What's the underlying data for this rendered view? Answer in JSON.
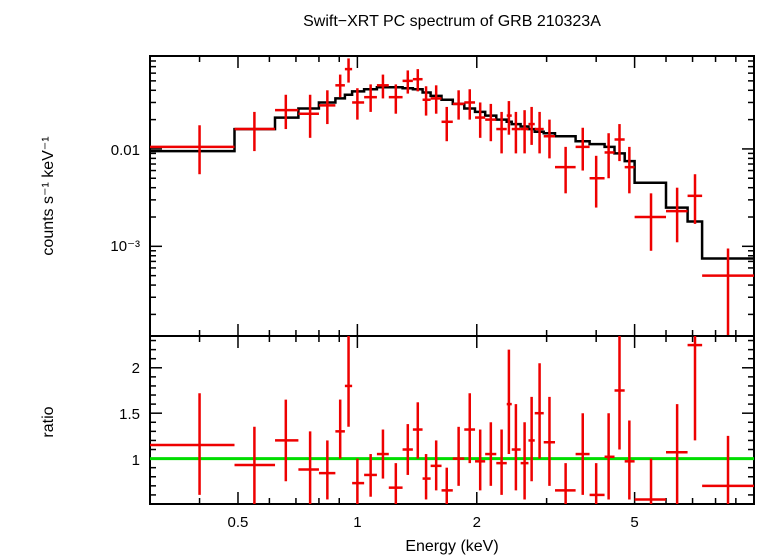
{
  "chart_data": {
    "type": "scatter",
    "title": "Swift−XRT PC spectrum of GRB 210323A",
    "xlabel": "Energy (keV)",
    "x_scale": "log",
    "xlim": [
      0.3,
      10
    ],
    "x_ticks": [
      {
        "value": 0.5,
        "label": "0.5"
      },
      {
        "value": 1,
        "label": "1"
      },
      {
        "value": 2,
        "label": "2"
      },
      {
        "value": 5,
        "label": "5"
      }
    ],
    "colors": {
      "data": "#ee0000",
      "model": "#000000",
      "unity": "#00dd00"
    },
    "panels": [
      {
        "id": "spectrum",
        "ylabel": "counts s⁻¹ keV⁻¹",
        "y_scale": "log",
        "ylim": [
          0.00012,
          0.09
        ],
        "y_ticks": [
          {
            "value": 0.01,
            "label": "0.01"
          },
          {
            "value": 0.001,
            "label": "10⁻³"
          }
        ],
        "data": [
          {
            "x": 0.4,
            "xlo": 0.3,
            "xhi": 0.49,
            "y": 0.0105,
            "ylo": 0.0055,
            "yhi": 0.0175
          },
          {
            "x": 0.55,
            "xlo": 0.49,
            "xhi": 0.62,
            "y": 0.016,
            "ylo": 0.0095,
            "yhi": 0.024
          },
          {
            "x": 0.66,
            "xlo": 0.62,
            "xhi": 0.71,
            "y": 0.025,
            "ylo": 0.016,
            "yhi": 0.036
          },
          {
            "x": 0.76,
            "xlo": 0.71,
            "xhi": 0.8,
            "y": 0.023,
            "ylo": 0.013,
            "yhi": 0.036
          },
          {
            "x": 0.84,
            "xlo": 0.8,
            "xhi": 0.88,
            "y": 0.028,
            "ylo": 0.018,
            "yhi": 0.04
          },
          {
            "x": 0.905,
            "xlo": 0.88,
            "xhi": 0.93,
            "y": 0.045,
            "ylo": 0.034,
            "yhi": 0.058
          },
          {
            "x": 0.95,
            "xlo": 0.93,
            "xhi": 0.97,
            "y": 0.066,
            "ylo": 0.048,
            "yhi": 0.085
          },
          {
            "x": 1.0,
            "xlo": 0.97,
            "xhi": 1.04,
            "y": 0.03,
            "ylo": 0.02,
            "yhi": 0.042
          },
          {
            "x": 1.08,
            "xlo": 1.04,
            "xhi": 1.12,
            "y": 0.034,
            "ylo": 0.024,
            "yhi": 0.046
          },
          {
            "x": 1.16,
            "xlo": 1.12,
            "xhi": 1.2,
            "y": 0.045,
            "ylo": 0.033,
            "yhi": 0.058
          },
          {
            "x": 1.25,
            "xlo": 1.2,
            "xhi": 1.3,
            "y": 0.034,
            "ylo": 0.023,
            "yhi": 0.046
          },
          {
            "x": 1.34,
            "xlo": 1.3,
            "xhi": 1.38,
            "y": 0.05,
            "ylo": 0.037,
            "yhi": 0.064
          },
          {
            "x": 1.42,
            "xlo": 1.38,
            "xhi": 1.46,
            "y": 0.052,
            "ylo": 0.039,
            "yhi": 0.066
          },
          {
            "x": 1.49,
            "xlo": 1.46,
            "xhi": 1.53,
            "y": 0.032,
            "ylo": 0.022,
            "yhi": 0.044
          },
          {
            "x": 1.58,
            "xlo": 1.53,
            "xhi": 1.63,
            "y": 0.033,
            "ylo": 0.023,
            "yhi": 0.045
          },
          {
            "x": 1.68,
            "xlo": 1.63,
            "xhi": 1.74,
            "y": 0.019,
            "ylo": 0.012,
            "yhi": 0.027
          },
          {
            "x": 1.8,
            "xlo": 1.74,
            "xhi": 1.86,
            "y": 0.029,
            "ylo": 0.02,
            "yhi": 0.04
          },
          {
            "x": 1.92,
            "xlo": 1.86,
            "xhi": 1.98,
            "y": 0.03,
            "ylo": 0.02,
            "yhi": 0.041
          },
          {
            "x": 2.04,
            "xlo": 1.98,
            "xhi": 2.1,
            "y": 0.021,
            "ylo": 0.013,
            "yhi": 0.03
          },
          {
            "x": 2.17,
            "xlo": 2.1,
            "xhi": 2.24,
            "y": 0.02,
            "ylo": 0.012,
            "yhi": 0.029
          },
          {
            "x": 2.31,
            "xlo": 2.24,
            "xhi": 2.38,
            "y": 0.016,
            "ylo": 0.009,
            "yhi": 0.024
          },
          {
            "x": 2.41,
            "xlo": 2.38,
            "xhi": 2.45,
            "y": 0.022,
            "ylo": 0.014,
            "yhi": 0.031
          },
          {
            "x": 2.51,
            "xlo": 2.45,
            "xhi": 2.58,
            "y": 0.016,
            "ylo": 0.009,
            "yhi": 0.024
          },
          {
            "x": 2.64,
            "xlo": 2.58,
            "xhi": 2.7,
            "y": 0.016,
            "ylo": 0.009,
            "yhi": 0.025
          },
          {
            "x": 2.75,
            "xlo": 2.7,
            "xhi": 2.8,
            "y": 0.018,
            "ylo": 0.011,
            "yhi": 0.027
          },
          {
            "x": 2.88,
            "xlo": 2.8,
            "xhi": 2.95,
            "y": 0.016,
            "ylo": 0.009,
            "yhi": 0.024
          },
          {
            "x": 3.05,
            "xlo": 2.95,
            "xhi": 3.15,
            "y": 0.0135,
            "ylo": 0.008,
            "yhi": 0.02
          },
          {
            "x": 3.35,
            "xlo": 3.15,
            "xhi": 3.55,
            "y": 0.0065,
            "ylo": 0.0035,
            "yhi": 0.0105
          },
          {
            "x": 3.7,
            "xlo": 3.55,
            "xhi": 3.85,
            "y": 0.0105,
            "ylo": 0.006,
            "yhi": 0.0165
          },
          {
            "x": 4.0,
            "xlo": 3.85,
            "xhi": 4.2,
            "y": 0.005,
            "ylo": 0.0025,
            "yhi": 0.0085
          },
          {
            "x": 4.3,
            "xlo": 4.2,
            "xhi": 4.45,
            "y": 0.0092,
            "ylo": 0.005,
            "yhi": 0.0145
          },
          {
            "x": 4.58,
            "xlo": 4.45,
            "xhi": 4.72,
            "y": 0.0125,
            "ylo": 0.0075,
            "yhi": 0.018
          },
          {
            "x": 4.85,
            "xlo": 4.72,
            "xhi": 5.0,
            "y": 0.0065,
            "ylo": 0.0035,
            "yhi": 0.0105
          },
          {
            "x": 5.5,
            "xlo": 5.0,
            "xhi": 6.0,
            "y": 0.002,
            "ylo": 0.0009,
            "yhi": 0.0035
          },
          {
            "x": 6.4,
            "xlo": 6.0,
            "xhi": 6.8,
            "y": 0.0023,
            "ylo": 0.0011,
            "yhi": 0.004
          },
          {
            "x": 7.1,
            "xlo": 6.8,
            "xhi": 7.4,
            "y": 0.0033,
            "ylo": 0.0017,
            "yhi": 0.0055
          },
          {
            "x": 8.6,
            "xlo": 7.4,
            "xhi": 10.0,
            "y": 0.0005,
            "ylo": 0.00012,
            "yhi": 0.00095
          }
        ],
        "model_steps": [
          {
            "x0": 0.3,
            "x1": 0.49,
            "y": 0.0095
          },
          {
            "x0": 0.49,
            "x1": 0.62,
            "y": 0.016
          },
          {
            "x0": 0.62,
            "x1": 0.71,
            "y": 0.021
          },
          {
            "x0": 0.71,
            "x1": 0.8,
            "y": 0.026
          },
          {
            "x0": 0.8,
            "x1": 0.88,
            "y": 0.03
          },
          {
            "x0": 0.88,
            "x1": 0.93,
            "y": 0.033
          },
          {
            "x0": 0.93,
            "x1": 0.97,
            "y": 0.036
          },
          {
            "x0": 0.97,
            "x1": 1.04,
            "y": 0.039
          },
          {
            "x0": 1.04,
            "x1": 1.12,
            "y": 0.041
          },
          {
            "x0": 1.12,
            "x1": 1.2,
            "y": 0.043
          },
          {
            "x0": 1.2,
            "x1": 1.3,
            "y": 0.043
          },
          {
            "x0": 1.3,
            "x1": 1.38,
            "y": 0.042
          },
          {
            "x0": 1.38,
            "x1": 1.46,
            "y": 0.041
          },
          {
            "x0": 1.46,
            "x1": 1.53,
            "y": 0.038
          },
          {
            "x0": 1.53,
            "x1": 1.63,
            "y": 0.035
          },
          {
            "x0": 1.63,
            "x1": 1.74,
            "y": 0.032
          },
          {
            "x0": 1.74,
            "x1": 1.86,
            "y": 0.029
          },
          {
            "x0": 1.86,
            "x1": 1.98,
            "y": 0.026
          },
          {
            "x0": 1.98,
            "x1": 2.1,
            "y": 0.024
          },
          {
            "x0": 2.1,
            "x1": 2.24,
            "y": 0.022
          },
          {
            "x0": 2.24,
            "x1": 2.38,
            "y": 0.02
          },
          {
            "x0": 2.38,
            "x1": 2.45,
            "y": 0.019
          },
          {
            "x0": 2.45,
            "x1": 2.58,
            "y": 0.018
          },
          {
            "x0": 2.58,
            "x1": 2.7,
            "y": 0.017
          },
          {
            "x0": 2.7,
            "x1": 2.8,
            "y": 0.016
          },
          {
            "x0": 2.8,
            "x1": 2.95,
            "y": 0.015
          },
          {
            "x0": 2.95,
            "x1": 3.15,
            "y": 0.0145
          },
          {
            "x0": 3.15,
            "x1": 3.55,
            "y": 0.0135
          },
          {
            "x0": 3.55,
            "x1": 3.85,
            "y": 0.012
          },
          {
            "x0": 3.85,
            "x1": 4.2,
            "y": 0.0112
          },
          {
            "x0": 4.2,
            "x1": 4.45,
            "y": 0.0105
          },
          {
            "x0": 4.45,
            "x1": 4.72,
            "y": 0.009
          },
          {
            "x0": 4.72,
            "x1": 5.0,
            "y": 0.0075
          },
          {
            "x0": 5.0,
            "x1": 6.0,
            "y": 0.0045
          },
          {
            "x0": 6.0,
            "x1": 6.8,
            "y": 0.0025
          },
          {
            "x0": 6.8,
            "x1": 7.4,
            "y": 0.0018
          },
          {
            "x0": 7.4,
            "x1": 10.0,
            "y": 0.00075
          }
        ]
      },
      {
        "id": "ratio",
        "ylabel": "ratio",
        "y_scale": "linear",
        "ylim": [
          0.5,
          2.35
        ],
        "y_ticks": [
          {
            "value": 1,
            "label": "1"
          },
          {
            "value": 1.5,
            "label": "1.5"
          },
          {
            "value": 2,
            "label": "2"
          }
        ],
        "reference_line": 1,
        "data": [
          {
            "x": 0.4,
            "xlo": 0.3,
            "xhi": 0.49,
            "y": 1.15,
            "ylo": 0.6,
            "yhi": 1.72
          },
          {
            "x": 0.55,
            "xlo": 0.49,
            "xhi": 0.62,
            "y": 0.93,
            "ylo": 0.5,
            "yhi": 1.35
          },
          {
            "x": 0.66,
            "xlo": 0.62,
            "xhi": 0.71,
            "y": 1.2,
            "ylo": 0.75,
            "yhi": 1.65
          },
          {
            "x": 0.76,
            "xlo": 0.71,
            "xhi": 0.8,
            "y": 0.88,
            "ylo": 0.5,
            "yhi": 1.3
          },
          {
            "x": 0.84,
            "xlo": 0.8,
            "xhi": 0.88,
            "y": 0.84,
            "ylo": 0.55,
            "yhi": 1.2
          },
          {
            "x": 0.905,
            "xlo": 0.88,
            "xhi": 0.93,
            "y": 1.3,
            "ylo": 1.0,
            "yhi": 1.65
          },
          {
            "x": 0.95,
            "xlo": 0.93,
            "xhi": 0.97,
            "y": 1.8,
            "ylo": 1.35,
            "yhi": 2.35
          },
          {
            "x": 1.0,
            "xlo": 0.97,
            "xhi": 1.04,
            "y": 0.73,
            "ylo": 0.5,
            "yhi": 1.0
          },
          {
            "x": 1.08,
            "xlo": 1.04,
            "xhi": 1.12,
            "y": 0.82,
            "ylo": 0.58,
            "yhi": 1.05
          },
          {
            "x": 1.16,
            "xlo": 1.12,
            "xhi": 1.2,
            "y": 1.05,
            "ylo": 0.78,
            "yhi": 1.32
          },
          {
            "x": 1.25,
            "xlo": 1.2,
            "xhi": 1.3,
            "y": 0.68,
            "ylo": 0.5,
            "yhi": 0.95
          },
          {
            "x": 1.34,
            "xlo": 1.3,
            "xhi": 1.38,
            "y": 1.1,
            "ylo": 0.82,
            "yhi": 1.38
          },
          {
            "x": 1.42,
            "xlo": 1.38,
            "xhi": 1.46,
            "y": 1.32,
            "ylo": 1.0,
            "yhi": 1.62
          },
          {
            "x": 1.49,
            "xlo": 1.46,
            "xhi": 1.53,
            "y": 0.78,
            "ylo": 0.55,
            "yhi": 1.05
          },
          {
            "x": 1.58,
            "xlo": 1.53,
            "xhi": 1.63,
            "y": 0.92,
            "ylo": 0.65,
            "yhi": 1.2
          },
          {
            "x": 1.68,
            "xlo": 1.63,
            "xhi": 1.74,
            "y": 0.65,
            "ylo": 0.5,
            "yhi": 0.9
          },
          {
            "x": 1.8,
            "xlo": 1.74,
            "xhi": 1.86,
            "y": 1.0,
            "ylo": 0.7,
            "yhi": 1.35
          },
          {
            "x": 1.92,
            "xlo": 1.86,
            "xhi": 1.98,
            "y": 1.32,
            "ylo": 0.95,
            "yhi": 1.72
          },
          {
            "x": 2.04,
            "xlo": 1.98,
            "xhi": 2.1,
            "y": 0.97,
            "ylo": 0.65,
            "yhi": 1.32
          },
          {
            "x": 2.17,
            "xlo": 2.1,
            "xhi": 2.24,
            "y": 1.05,
            "ylo": 0.7,
            "yhi": 1.4
          },
          {
            "x": 2.31,
            "xlo": 2.24,
            "xhi": 2.38,
            "y": 0.95,
            "ylo": 0.6,
            "yhi": 1.32
          },
          {
            "x": 2.41,
            "xlo": 2.38,
            "xhi": 2.45,
            "y": 1.6,
            "ylo": 1.05,
            "yhi": 2.2
          },
          {
            "x": 2.51,
            "xlo": 2.45,
            "xhi": 2.58,
            "y": 1.1,
            "ylo": 0.65,
            "yhi": 1.6
          },
          {
            "x": 2.64,
            "xlo": 2.58,
            "xhi": 2.7,
            "y": 0.95,
            "ylo": 0.55,
            "yhi": 1.4
          },
          {
            "x": 2.75,
            "xlo": 2.7,
            "xhi": 2.8,
            "y": 1.2,
            "ylo": 0.75,
            "yhi": 1.68
          },
          {
            "x": 2.88,
            "xlo": 2.8,
            "xhi": 2.95,
            "y": 1.5,
            "ylo": 1.0,
            "yhi": 2.05
          },
          {
            "x": 3.05,
            "xlo": 2.95,
            "xhi": 3.15,
            "y": 1.18,
            "ylo": 0.7,
            "yhi": 1.68
          },
          {
            "x": 3.35,
            "xlo": 3.15,
            "xhi": 3.55,
            "y": 0.65,
            "ylo": 0.5,
            "yhi": 0.95
          },
          {
            "x": 3.7,
            "xlo": 3.55,
            "xhi": 3.85,
            "y": 1.05,
            "ylo": 0.6,
            "yhi": 1.5
          },
          {
            "x": 4.0,
            "xlo": 3.85,
            "xhi": 4.2,
            "y": 0.6,
            "ylo": 0.5,
            "yhi": 0.95
          },
          {
            "x": 4.3,
            "xlo": 4.2,
            "xhi": 4.45,
            "y": 1.02,
            "ylo": 0.55,
            "yhi": 1.5
          },
          {
            "x": 4.58,
            "xlo": 4.45,
            "xhi": 4.72,
            "y": 1.75,
            "ylo": 1.1,
            "yhi": 2.35
          },
          {
            "x": 4.85,
            "xlo": 4.72,
            "xhi": 5.0,
            "y": 0.97,
            "ylo": 0.55,
            "yhi": 1.42
          },
          {
            "x": 5.5,
            "xlo": 5.0,
            "xhi": 6.0,
            "y": 0.55,
            "ylo": 0.5,
            "yhi": 1.0
          },
          {
            "x": 6.4,
            "xlo": 6.0,
            "xhi": 6.8,
            "y": 1.07,
            "ylo": 0.5,
            "yhi": 1.6
          },
          {
            "x": 7.1,
            "xlo": 6.8,
            "xhi": 7.4,
            "y": 2.25,
            "ylo": 1.2,
            "yhi": 2.35
          },
          {
            "x": 8.6,
            "xlo": 7.4,
            "xhi": 10.0,
            "y": 0.7,
            "ylo": 0.5,
            "yhi": 1.25
          }
        ]
      }
    ]
  }
}
